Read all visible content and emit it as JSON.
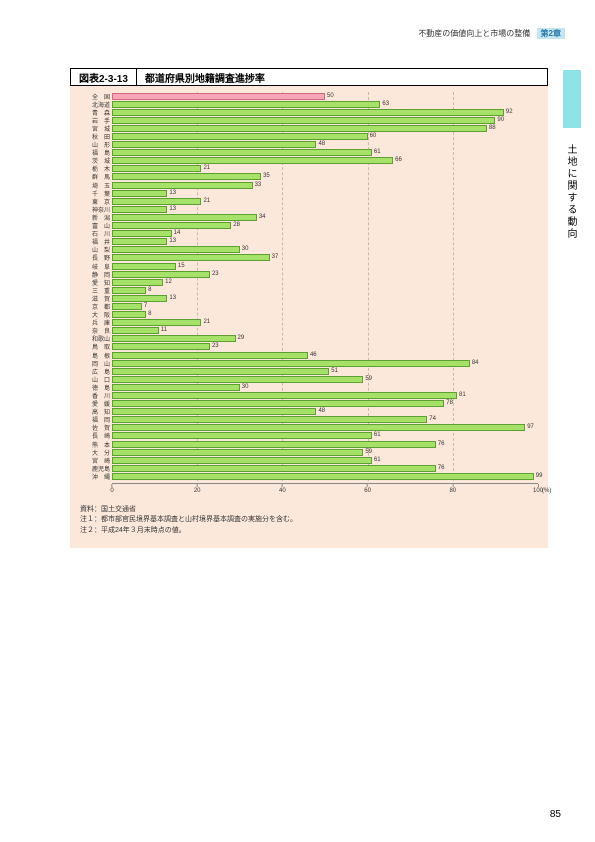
{
  "header": {
    "section_text": "不動産の価値向上と市場の整備",
    "chapter_label": "第2章"
  },
  "side_tab": {
    "vertical_text": "土地に関する動向"
  },
  "figure": {
    "code": "図表2-3-13",
    "title": "都道府県別地籍調査進捗率"
  },
  "chart": {
    "type": "bar",
    "orientation": "horizontal",
    "x_axis": {
      "min": 0,
      "max": 100,
      "tick_step": 20,
      "ticks": [
        0,
        20,
        40,
        60,
        80,
        100
      ],
      "unit_label": "(%)"
    },
    "background_color": "#fce8db",
    "bar_color": "#a6e26a",
    "bar_border": "#5da030",
    "national_bar_color": "#f6a6b6",
    "national_bar_border": "#d06a82",
    "grid_color": "#c9b8ab",
    "label_fontsize": 6,
    "value_fontsize": 6,
    "bars": [
      {
        "label": "全　国",
        "value": 50,
        "national": true
      },
      {
        "label": "北海道",
        "value": 63
      },
      {
        "label": "青　森",
        "value": 92
      },
      {
        "label": "岩　手",
        "value": 90
      },
      {
        "label": "宮　城",
        "value": 88
      },
      {
        "label": "秋　田",
        "value": 60
      },
      {
        "label": "山　形",
        "value": 48
      },
      {
        "label": "福　島",
        "value": 61
      },
      {
        "label": "茨　城",
        "value": 66
      },
      {
        "label": "栃　木",
        "value": 21
      },
      {
        "label": "群　馬",
        "value": 35
      },
      {
        "label": "埼　玉",
        "value": 33
      },
      {
        "label": "千　葉",
        "value": 13
      },
      {
        "label": "東　京",
        "value": 21
      },
      {
        "label": "神奈川",
        "value": 13
      },
      {
        "label": "新　潟",
        "value": 34
      },
      {
        "label": "富　山",
        "value": 28
      },
      {
        "label": "石　川",
        "value": 14
      },
      {
        "label": "福　井",
        "value": 13
      },
      {
        "label": "山　梨",
        "value": 30
      },
      {
        "label": "長　野",
        "value": 37
      },
      {
        "label": "岐　阜",
        "value": 15
      },
      {
        "label": "静　岡",
        "value": 23
      },
      {
        "label": "愛　知",
        "value": 12
      },
      {
        "label": "三　重",
        "value": 8
      },
      {
        "label": "滋　賀",
        "value": 13
      },
      {
        "label": "京　都",
        "value": 7
      },
      {
        "label": "大　阪",
        "value": 8
      },
      {
        "label": "兵　庫",
        "value": 21
      },
      {
        "label": "奈　良",
        "value": 11
      },
      {
        "label": "和歌山",
        "value": 29
      },
      {
        "label": "鳥　取",
        "value": 23
      },
      {
        "label": "島　根",
        "value": 46
      },
      {
        "label": "岡　山",
        "value": 84
      },
      {
        "label": "広　島",
        "value": 51
      },
      {
        "label": "山　口",
        "value": 59
      },
      {
        "label": "徳　島",
        "value": 30
      },
      {
        "label": "香　川",
        "value": 81
      },
      {
        "label": "愛　媛",
        "value": 78
      },
      {
        "label": "高　知",
        "value": 48
      },
      {
        "label": "福　岡",
        "value": 74
      },
      {
        "label": "佐　賀",
        "value": 97
      },
      {
        "label": "長　崎",
        "value": 61
      },
      {
        "label": "熊　本",
        "value": 76
      },
      {
        "label": "大　分",
        "value": 59
      },
      {
        "label": "宮　崎",
        "value": 61
      },
      {
        "label": "鹿児島",
        "value": 76
      },
      {
        "label": "沖　縄",
        "value": 99
      }
    ]
  },
  "notes": {
    "source": "資料：国土交通省",
    "note1": "注１：都市部官民境界基本調査と山村境界基本調査の実施分を含む。",
    "note2": "注２：平成24年３月末時点の値。"
  },
  "page_number": "85"
}
